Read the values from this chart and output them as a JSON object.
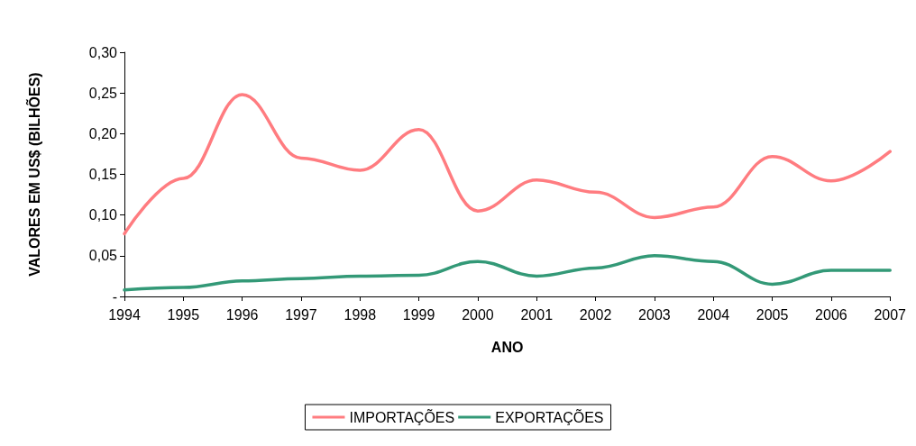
{
  "chart_data": {
    "type": "line",
    "xlabel": "ANO",
    "ylabel": "VALORES EM US$ (BILHÕES)",
    "categories": [
      "1994",
      "1995",
      "1996",
      "1997",
      "1998",
      "1999",
      "2000",
      "2001",
      "2002",
      "2003",
      "2004",
      "2005",
      "2006",
      "2007"
    ],
    "series": [
      {
        "name": "IMPORTAÇÕES",
        "color": "#ff7c80",
        "values": [
          0.077,
          0.145,
          0.248,
          0.17,
          0.155,
          0.205,
          0.105,
          0.143,
          0.128,
          0.097,
          0.11,
          0.172,
          0.142,
          0.178
        ]
      },
      {
        "name": "EXPORTAÇÕES",
        "color": "#339977",
        "values": [
          0.008,
          0.011,
          0.019,
          0.022,
          0.025,
          0.026,
          0.043,
          0.025,
          0.035,
          0.05,
          0.043,
          0.015,
          0.032,
          0.032
        ]
      }
    ],
    "ylim": [
      0,
      0.3
    ],
    "yticks": [
      {
        "value": 0,
        "label": "-"
      },
      {
        "value": 0.05,
        "label": "0,05"
      },
      {
        "value": 0.1,
        "label": "0,10"
      },
      {
        "value": 0.15,
        "label": "0,15"
      },
      {
        "value": 0.2,
        "label": "0,20"
      },
      {
        "value": 0.25,
        "label": "0,25"
      },
      {
        "value": 0.3,
        "label": "0,30"
      }
    ],
    "grid": false,
    "legend": "bottom",
    "marker": "none",
    "line_style": "solid"
  }
}
